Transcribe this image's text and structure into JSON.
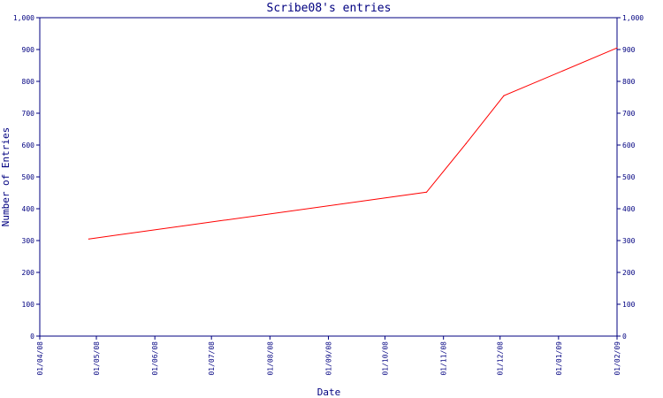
{
  "chart_data": {
    "type": "line",
    "title": "Scribe08's entries",
    "xlabel": "Date",
    "ylabel": "Number of Entries",
    "x_ticks": [
      "01/04/08",
      "01/05/08",
      "01/06/08",
      "01/07/08",
      "01/08/08",
      "01/09/08",
      "01/10/08",
      "01/11/08",
      "01/12/08",
      "01/01/09",
      "01/02/09"
    ],
    "y_ticks": [
      "0",
      "100",
      "200",
      "300",
      "400",
      "500",
      "600",
      "700",
      "800",
      "900",
      "1,000"
    ],
    "ylim": [
      0,
      1000
    ],
    "xlim": [
      "2008-04-01",
      "2009-02-01"
    ],
    "grid": false,
    "colors": {
      "axis": "#000080",
      "line": "#ff0000",
      "background": "#ffffff"
    },
    "series": [
      {
        "points": [
          {
            "x": "2008-04-27",
            "y": 305
          },
          {
            "x": "2008-10-23",
            "y": 452
          },
          {
            "x": "2008-11-13",
            "y": 605
          },
          {
            "x": "2008-12-03",
            "y": 755
          },
          {
            "x": "2009-02-01",
            "y": 905
          }
        ]
      }
    ]
  }
}
